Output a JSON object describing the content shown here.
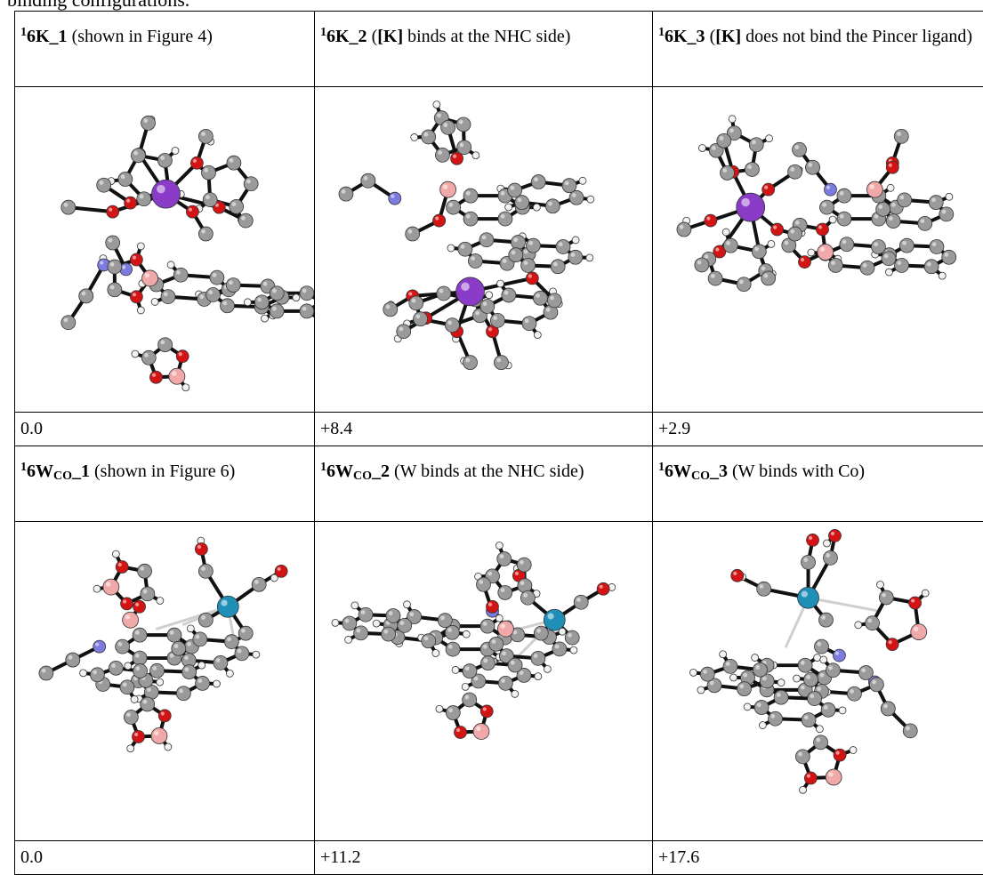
{
  "caption_fragment": "binding configurations.",
  "colors": {
    "carbon": "#9a9a9a",
    "hydrogen": "#f2f2f2",
    "oxygen": "#d41414",
    "nitrogen": "#7b7be0",
    "boron": "#f0a8a8",
    "potassium": "#8a3cc8",
    "tungsten": "#1f8fb8"
  },
  "rows": {
    "k": {
      "cells": [
        {
          "prefix": "1",
          "name": "6K_1",
          "desc": " (shown in Figure 4)",
          "energy": "0.0"
        },
        {
          "prefix": "1",
          "name": "6K_2",
          "open": " (",
          "bold_mid": "[K]",
          "desc": " binds at the NHC side)",
          "energy": "+8.4"
        },
        {
          "prefix": "1",
          "name": "6K_3",
          "open": " (",
          "bold_mid": "[K]",
          "desc": " does not bind the Pincer ligand)",
          "energy": "+2.9"
        }
      ]
    },
    "w": {
      "cells": [
        {
          "prefix": "1",
          "name": "6W",
          "sub": "CO",
          "suffix": "_1",
          "desc": " (shown in Figure 6)",
          "energy": "0.0"
        },
        {
          "prefix": "1",
          "name": "6W",
          "sub": "CO",
          "suffix": "_2",
          "desc": " (W binds at the NHC side)",
          "energy": "+11.2"
        },
        {
          "prefix": "1",
          "name": "6W",
          "sub": "CO",
          "suffix": "_3",
          "desc": " (W binds with Co)",
          "energy": "+17.6"
        }
      ]
    }
  }
}
